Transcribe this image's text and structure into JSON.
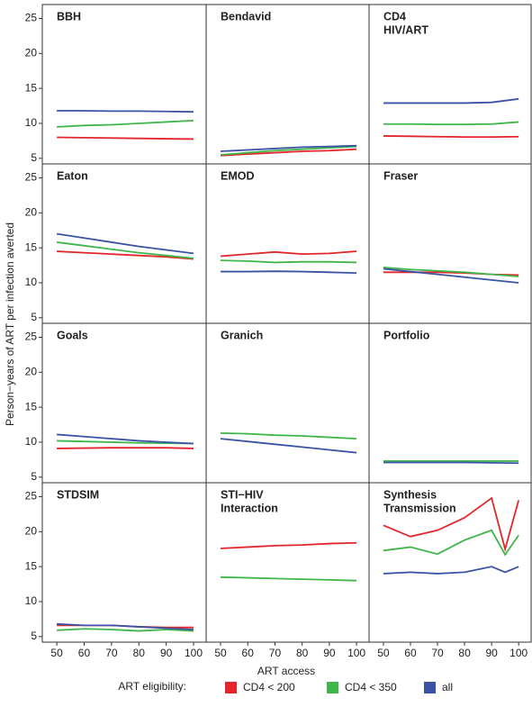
{
  "chart_data": {
    "type": "line",
    "xlabel": "ART access",
    "ylabel": "Person−years of ART per infection averted",
    "legend_title": "ART eligibility:",
    "legend": [
      {
        "name": "CD4 < 200",
        "color": "#e3262b"
      },
      {
        "name": "CD4 < 350",
        "color": "#3fb54a"
      },
      {
        "name": "all",
        "color": "#3a53a4"
      }
    ],
    "xlim": [
      44.7,
      104.6
    ],
    "xticks": [
      50,
      60,
      70,
      80,
      90,
      100
    ],
    "ylim": [
      4.2,
      27
    ],
    "yticks": [
      5,
      10,
      15,
      20,
      25
    ],
    "grid": false,
    "panels": [
      {
        "title": [
          "BBH"
        ],
        "x": [
          50,
          60,
          70,
          80,
          90,
          100
        ],
        "lines": [
          [
            8.0,
            7.95,
            7.9,
            7.85,
            7.8,
            7.75
          ],
          [
            9.5,
            9.7,
            9.8,
            10.0,
            10.2,
            10.4
          ],
          [
            11.8,
            11.8,
            11.75,
            11.75,
            11.7,
            11.65
          ]
        ]
      },
      {
        "title": [
          "Bendavid"
        ],
        "x": [
          50,
          60,
          70,
          80,
          90,
          100
        ],
        "lines": [
          [
            5.4,
            5.6,
            5.8,
            6.0,
            6.1,
            6.3
          ],
          [
            5.5,
            5.8,
            6.1,
            6.3,
            6.5,
            6.7
          ],
          [
            6.0,
            6.2,
            6.4,
            6.6,
            6.7,
            6.8
          ]
        ]
      },
      {
        "title": [
          "CD4",
          "HIV/ART"
        ],
        "x": [
          50,
          60,
          70,
          80,
          90,
          100
        ],
        "lines": [
          [
            8.2,
            8.15,
            8.1,
            8.05,
            8.05,
            8.1
          ],
          [
            9.9,
            9.9,
            9.85,
            9.85,
            9.9,
            10.2
          ],
          [
            12.9,
            12.9,
            12.9,
            12.9,
            13.0,
            13.5
          ]
        ]
      },
      {
        "title": [
          "Eaton"
        ],
        "x": [
          50,
          60,
          70,
          80,
          90,
          100
        ],
        "lines": [
          [
            14.5,
            14.3,
            14.1,
            13.9,
            13.7,
            13.4
          ],
          [
            15.8,
            15.3,
            14.8,
            14.3,
            13.9,
            13.5
          ],
          [
            17.0,
            16.4,
            15.8,
            15.2,
            14.7,
            14.2
          ]
        ]
      },
      {
        "title": [
          "EMOD"
        ],
        "x": [
          50,
          60,
          70,
          80,
          90,
          100
        ],
        "lines": [
          [
            13.8,
            14.1,
            14.4,
            14.1,
            14.2,
            14.5
          ],
          [
            13.2,
            13.1,
            12.9,
            13.0,
            13.0,
            12.9
          ],
          [
            11.6,
            11.6,
            11.65,
            11.6,
            11.5,
            11.4
          ]
        ]
      },
      {
        "title": [
          "Fraser"
        ],
        "x": [
          50,
          60,
          70,
          80,
          90,
          100
        ],
        "lines": [
          [
            11.5,
            11.5,
            11.5,
            11.4,
            11.2,
            11.1
          ],
          [
            12.2,
            11.9,
            11.7,
            11.5,
            11.2,
            10.9
          ],
          [
            12.0,
            11.6,
            11.2,
            10.8,
            10.4,
            10.0
          ]
        ]
      },
      {
        "title": [
          "Goals"
        ],
        "x": [
          50,
          60,
          70,
          80,
          90,
          100
        ],
        "lines": [
          [
            9.1,
            9.15,
            9.2,
            9.2,
            9.2,
            9.1
          ],
          [
            10.2,
            10.1,
            10.0,
            9.9,
            9.85,
            9.8
          ],
          [
            11.1,
            10.8,
            10.5,
            10.2,
            10.0,
            9.8
          ]
        ]
      },
      {
        "title": [
          "Granich"
        ],
        "x": [
          50,
          60,
          70,
          80,
          90,
          100
        ],
        "lines": [
          null,
          [
            11.3,
            11.2,
            11.0,
            10.9,
            10.7,
            10.5
          ],
          [
            10.5,
            10.1,
            9.7,
            9.3,
            8.9,
            8.5
          ]
        ]
      },
      {
        "title": [
          "Portfolio"
        ],
        "x": [
          50,
          60,
          70,
          80,
          90,
          100
        ],
        "lines": [
          null,
          [
            7.3,
            7.3,
            7.3,
            7.3,
            7.3,
            7.3
          ],
          [
            7.1,
            7.1,
            7.1,
            7.1,
            7.05,
            7.0
          ]
        ]
      },
      {
        "title": [
          "STDSIM"
        ],
        "x": [
          50,
          60,
          70,
          80,
          90,
          100
        ],
        "lines": [
          [
            6.6,
            6.6,
            6.6,
            6.4,
            6.3,
            6.3
          ],
          [
            5.9,
            6.1,
            6.0,
            5.8,
            6.0,
            5.8
          ],
          [
            6.8,
            6.6,
            6.6,
            6.4,
            6.2,
            6.0
          ]
        ]
      },
      {
        "title": [
          "STI−HIV",
          "Interaction"
        ],
        "x": [
          50,
          60,
          70,
          80,
          90,
          100
        ],
        "lines": [
          [
            17.6,
            17.8,
            18.0,
            18.1,
            18.3,
            18.4
          ],
          [
            13.5,
            13.4,
            13.3,
            13.2,
            13.1,
            13.0
          ],
          null
        ]
      },
      {
        "title": [
          "Synthesis",
          "Transmission"
        ],
        "x": [
          50,
          60,
          70,
          80,
          90,
          95,
          100
        ],
        "lines": [
          [
            20.9,
            19.3,
            20.2,
            22.0,
            24.8,
            17.5,
            24.5
          ],
          [
            17.3,
            17.8,
            16.8,
            18.8,
            20.2,
            16.7,
            19.5
          ],
          [
            14.0,
            14.2,
            14.0,
            14.2,
            15.0,
            14.2,
            15.0
          ]
        ]
      }
    ]
  }
}
